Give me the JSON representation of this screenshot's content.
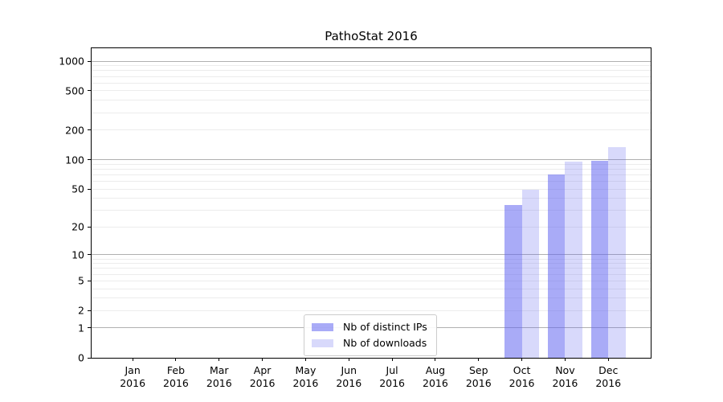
{
  "chart_data": {
    "type": "bar",
    "title": "PathoStat 2016",
    "xlabel": "",
    "ylabel": "",
    "categories": [
      "Jan 2016",
      "Feb 2016",
      "Mar 2016",
      "Apr 2016",
      "May 2016",
      "Jun 2016",
      "Jul 2016",
      "Aug 2016",
      "Sep 2016",
      "Oct 2016",
      "Nov 2016",
      "Dec 2016"
    ],
    "series": [
      {
        "name": "Nb of distinct IPs",
        "color": "rgba(99,102,240,0.55)",
        "values": [
          0,
          0,
          0,
          0,
          0,
          0,
          0,
          0,
          0,
          34,
          70,
          98
        ]
      },
      {
        "name": "Nb of downloads",
        "color": "rgba(99,102,240,0.25)",
        "values": [
          0,
          0,
          0,
          0,
          0,
          0,
          0,
          0,
          0,
          49,
          95,
          135
        ]
      }
    ],
    "yscale": "log1p",
    "ylim": [
      0,
      1350
    ],
    "xlim": [
      -0.95,
      11.98
    ],
    "yticks": [
      0,
      1,
      2,
      5,
      10,
      20,
      50,
      100,
      200,
      500,
      1000
    ],
    "major_gridlines": [
      1,
      10,
      100,
      1000
    ],
    "grid": true,
    "legend_position": "lower center",
    "bar_group_width_fraction": 0.8
  },
  "legend": {
    "items": [
      {
        "label": "Nb of distinct IPs",
        "color": "rgba(99,102,240,0.55)"
      },
      {
        "label": "Nb of downloads",
        "color": "rgba(99,102,240,0.25)"
      }
    ]
  },
  "colors": {
    "major_grid": "#b0b0b0",
    "minor_grid": "#ececec",
    "axis": "#000000",
    "bar_base": "#6366f0"
  }
}
